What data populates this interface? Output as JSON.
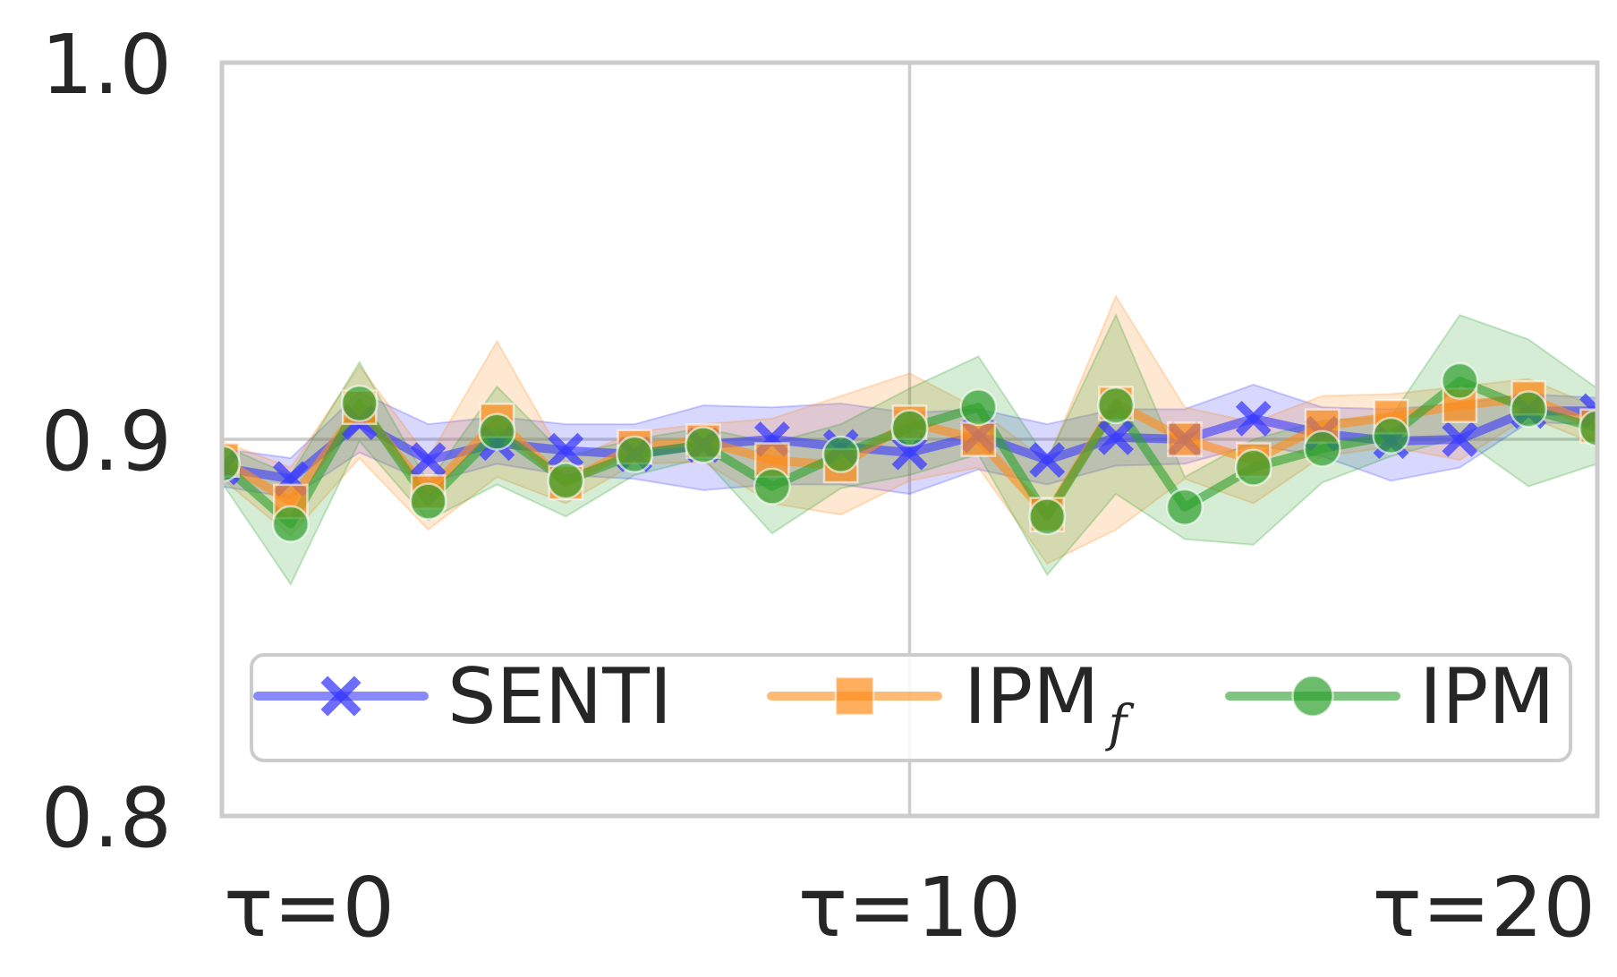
{
  "chart_data": {
    "type": "line",
    "x": [
      0,
      1,
      2,
      3,
      4,
      5,
      6,
      7,
      8,
      9,
      10,
      11,
      12,
      13,
      14,
      15,
      16,
      17,
      18,
      19,
      20
    ],
    "xlim": [
      0,
      20
    ],
    "ylim": [
      0.8,
      1.0
    ],
    "x_ticks": [
      {
        "value": 0,
        "label": "τ=0"
      },
      {
        "value": 10,
        "label": "τ=10"
      },
      {
        "value": 20,
        "label": "τ=20"
      }
    ],
    "y_ticks": [
      {
        "value": 0.8,
        "label": "0.8"
      },
      {
        "value": 0.9,
        "label": "0.9"
      },
      {
        "value": 1.0,
        "label": "1.0"
      }
    ],
    "grid": true,
    "legend_position": "bottom",
    "series": [
      {
        "name": "SENTI",
        "name_sub": "",
        "color": "#3b3bff",
        "marker": "x",
        "values": [
          0.8925,
          0.8895,
          0.9045,
          0.8945,
          0.899,
          0.897,
          0.896,
          0.8985,
          0.9,
          0.898,
          0.8965,
          0.901,
          0.8945,
          0.9005,
          0.9,
          0.9055,
          0.9015,
          0.8995,
          0.9,
          0.9075,
          0.9075
        ],
        "lower": [
          0.8875,
          0.8845,
          0.8965,
          0.8885,
          0.8935,
          0.8905,
          0.8895,
          0.8865,
          0.888,
          0.888,
          0.8855,
          0.892,
          0.888,
          0.893,
          0.8935,
          0.8985,
          0.8955,
          0.889,
          0.8925,
          0.9045,
          0.904
        ],
        "upper": [
          0.8975,
          0.895,
          0.9125,
          0.904,
          0.906,
          0.904,
          0.904,
          0.909,
          0.9085,
          0.9095,
          0.907,
          0.908,
          0.904,
          0.908,
          0.908,
          0.9145,
          0.9085,
          0.908,
          0.9095,
          0.912,
          0.911
        ]
      },
      {
        "name": "IPM",
        "name_sub": "f",
        "color": "#ff8c1a",
        "marker": "square",
        "values": [
          0.8945,
          0.8835,
          0.9085,
          0.886,
          0.905,
          0.8885,
          0.898,
          0.8995,
          0.8945,
          0.893,
          0.9045,
          0.9,
          0.88,
          0.9095,
          0.9,
          0.8945,
          0.9035,
          0.906,
          0.909,
          0.911,
          0.9035
        ],
        "lower": [
          0.8895,
          0.8745,
          0.895,
          0.876,
          0.89,
          0.883,
          0.8935,
          0.894,
          0.883,
          0.88,
          0.889,
          0.8925,
          0.867,
          0.876,
          0.8895,
          0.883,
          0.8955,
          0.898,
          0.8945,
          0.906,
          0.8985
        ],
        "upper": [
          0.8995,
          0.8925,
          0.9195,
          0.895,
          0.926,
          0.894,
          0.902,
          0.904,
          0.9055,
          0.9115,
          0.9175,
          0.908,
          0.894,
          0.938,
          0.9085,
          0.9045,
          0.9115,
          0.912,
          0.914,
          0.916,
          0.9085
        ]
      },
      {
        "name": "IPM",
        "name_sub": "",
        "color": "#2ca02c",
        "marker": "circle",
        "values": [
          0.8935,
          0.8775,
          0.9095,
          0.8835,
          0.902,
          0.889,
          0.896,
          0.8985,
          0.8875,
          0.896,
          0.903,
          0.9085,
          0.8795,
          0.909,
          0.882,
          0.8925,
          0.8975,
          0.901,
          0.9155,
          0.908,
          0.903
        ],
        "lower": [
          0.8885,
          0.8615,
          0.8995,
          0.8785,
          0.888,
          0.8795,
          0.8905,
          0.895,
          0.875,
          0.887,
          0.8905,
          0.896,
          0.864,
          0.8855,
          0.8735,
          0.872,
          0.8885,
          0.8955,
          0.9005,
          0.8875,
          0.8935
        ],
        "upper": [
          0.8985,
          0.8905,
          0.9205,
          0.8885,
          0.914,
          0.8955,
          0.9,
          0.903,
          0.899,
          0.904,
          0.9135,
          0.922,
          0.8945,
          0.933,
          0.89,
          0.9,
          0.905,
          0.906,
          0.933,
          0.9265,
          0.9135
        ]
      }
    ]
  }
}
